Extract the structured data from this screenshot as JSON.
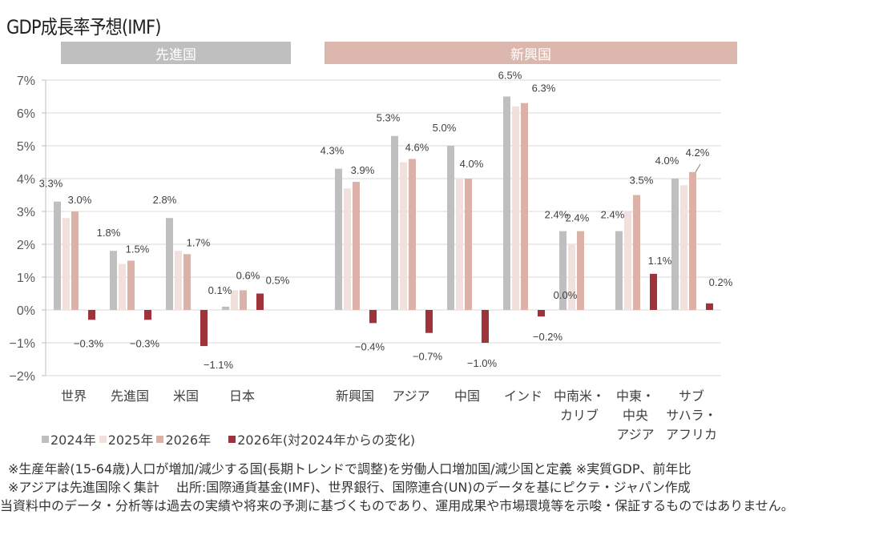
{
  "title": "GDP成長率予想(IMF)",
  "bands": {
    "advanced": "先進国",
    "emerging": "新興国"
  },
  "chart_data": {
    "type": "bar",
    "title": "GDP成長率予想(IMF)",
    "xlabel": "",
    "ylabel": "",
    "ylim": [
      -2,
      7
    ],
    "yticks": [
      "7%",
      "6%",
      "5%",
      "4%",
      "3%",
      "2%",
      "1%",
      "0%",
      "−1%",
      "−2%"
    ],
    "ytick_values": [
      7,
      6,
      5,
      4,
      3,
      2,
      1,
      0,
      -1,
      -2
    ],
    "grid": true,
    "legend_position": "bottom-left",
    "categories": [
      [
        "世界"
      ],
      [
        "先進国"
      ],
      [
        "米国"
      ],
      [
        "日本"
      ],
      [
        "新興国"
      ],
      [
        "アジア"
      ],
      [
        "中国"
      ],
      [
        "インド"
      ],
      [
        "中南米・",
        "カリブ"
      ],
      [
        "中東・",
        "中央",
        "アジア"
      ],
      [
        "サブ",
        "サハラ・",
        "アフリカ"
      ]
    ],
    "groups": [
      {
        "label": "先進国",
        "categories": [
          0,
          1,
          2,
          3
        ]
      },
      {
        "label": "新興国",
        "categories": [
          4,
          5,
          6,
          7,
          8,
          9,
          10
        ]
      }
    ],
    "series": [
      {
        "name": "2024年",
        "color": "#bfbfbf",
        "values": [
          3.3,
          1.8,
          2.8,
          0.1,
          4.3,
          5.3,
          5.0,
          6.5,
          2.4,
          2.4,
          4.0
        ],
        "labels": [
          "3.3%",
          "1.8%",
          "2.8%",
          "0.1%",
          "4.3%",
          "5.3%",
          "5.0%",
          "6.5%",
          "2.4%",
          "2.4%",
          "4.0%"
        ]
      },
      {
        "name": "2025年",
        "color": "#f1e0dc",
        "values": [
          2.8,
          1.4,
          1.8,
          0.6,
          3.7,
          4.5,
          4.0,
          6.2,
          2.0,
          3.0,
          3.8
        ],
        "labels": [
          "",
          "",
          "",
          "",
          "",
          "",
          "",
          "",
          "",
          "",
          ""
        ]
      },
      {
        "name": "2026年",
        "color": "#dcb1a7",
        "values": [
          3.0,
          1.5,
          1.7,
          0.6,
          3.9,
          4.6,
          4.0,
          6.3,
          2.4,
          3.5,
          4.2
        ],
        "labels": [
          "3.0%",
          "1.5%",
          "1.7%",
          "0.6%",
          "3.9%",
          "4.6%",
          "4.0%",
          "6.3%",
          "2.4%",
          "3.5%",
          "4.2%"
        ]
      },
      {
        "name": "2026年(対2024年からの変化)",
        "color": "#9e333b",
        "values": [
          -0.3,
          -0.3,
          -1.1,
          0.5,
          -0.4,
          -0.7,
          -1.0,
          -0.2,
          0.0,
          1.1,
          0.2
        ],
        "labels": [
          "−0.3%",
          "−0.3%",
          "−1.1%",
          "0.5%",
          "−0.4%",
          "−0.7%",
          "−1.0%",
          "−0.2%",
          "0.0%",
          "1.1%",
          "0.2%"
        ]
      }
    ]
  },
  "legend": [
    {
      "label": "2024年",
      "color": "#bfbfbf"
    },
    {
      "label": "2025年",
      "color": "#f1e0dc"
    },
    {
      "label": "2026年",
      "color": "#dcb1a7"
    },
    {
      "label": "2026年(対2024年からの変化)",
      "color": "#9e333b"
    }
  ],
  "notes": {
    "note1": "※生産年齢(15-64歳)人口が増加/減少する国(長期トレンドで調整)を労働人口増加国/減少国と定義 ※実質GDP、前年比",
    "note2": "※アジアは先進国除く集計　 出所:国際通貨基金(IMF)、世界銀行、国際連合(UN)のデータを基にピクテ・ジャパン作成",
    "disclaimer": "当資料中のデータ・分析等は過去の実績や将来の予測に基づくものであり、運用成果や市場環境等を示唆・保証するものではありません。"
  }
}
